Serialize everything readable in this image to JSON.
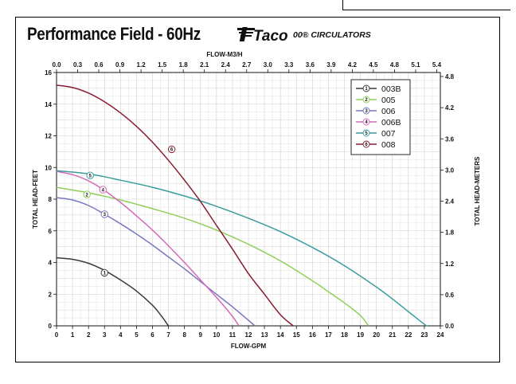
{
  "header": {
    "title": "Performance Field - 60Hz",
    "brand": "Taco",
    "subtitle": "00® CIRCULATORS"
  },
  "chart_data": {
    "type": "line",
    "title": "Performance Field - 60Hz",
    "xlabel": "FLOW-GPM",
    "ylabel": "TOTAL HEAD-FEET",
    "x2label": "FLOW-M3/H",
    "y2label": "TOTAL HEAD-METERS",
    "xlim": [
      0,
      24
    ],
    "ylim": [
      0,
      16
    ],
    "x_ticks": [
      0,
      1,
      2,
      3,
      4,
      5,
      6,
      7,
      8,
      9,
      10,
      11,
      12,
      13,
      14,
      15,
      16,
      17,
      18,
      19,
      20,
      21,
      22,
      23,
      24
    ],
    "y_ticks": [
      0,
      2,
      4,
      6,
      8,
      10,
      12,
      14,
      16
    ],
    "x2_ticks": [
      "0.0",
      "0.3",
      "0.6",
      "0.9",
      "1.2",
      "1.5",
      "1.8",
      "2.1",
      "2.4",
      "2.7",
      "3.0",
      "3.3",
      "3.6",
      "3.9",
      "4.2",
      "4.5",
      "4.8",
      "5.1",
      "5.4"
    ],
    "y2_ticks": [
      "0.0",
      "0.6",
      "1.2",
      "1.8",
      "2.4",
      "3.0",
      "3.6",
      "4.2",
      "4.8"
    ],
    "grid": true,
    "legend_position": "top-right",
    "series": [
      {
        "id": "1",
        "name": "003B",
        "color": "#3a3a3a",
        "x": [
          0,
          1,
          2,
          3,
          4,
          5,
          6,
          6.5,
          7
        ],
        "y": [
          4.3,
          4.2,
          3.95,
          3.5,
          2.9,
          2.2,
          1.3,
          0.7,
          0
        ]
      },
      {
        "id": "2",
        "name": "005",
        "color": "#8fcf5a",
        "x": [
          0,
          2,
          4,
          6,
          8,
          10,
          12,
          14,
          16,
          17,
          18,
          19,
          19.5
        ],
        "y": [
          8.75,
          8.4,
          7.95,
          7.4,
          6.8,
          6.05,
          5.15,
          4.1,
          2.85,
          2.15,
          1.45,
          0.65,
          0
        ]
      },
      {
        "id": "3",
        "name": "006",
        "color": "#7878c0",
        "x": [
          0,
          1,
          2,
          3,
          4,
          5,
          6,
          7,
          8,
          9,
          10,
          11,
          12,
          12.4
        ],
        "y": [
          8.1,
          7.95,
          7.6,
          7.05,
          6.45,
          5.8,
          5.1,
          4.35,
          3.6,
          2.8,
          2.0,
          1.2,
          0.35,
          0
        ]
      },
      {
        "id": "4",
        "name": "006B",
        "color": "#d46ab8",
        "x": [
          0,
          1,
          2,
          3,
          4,
          5,
          6,
          7,
          8,
          9,
          10,
          11,
          11.4
        ],
        "y": [
          9.75,
          9.55,
          9.15,
          8.55,
          7.8,
          6.95,
          6.05,
          5.05,
          4.0,
          2.9,
          1.8,
          0.6,
          0
        ]
      },
      {
        "id": "5",
        "name": "007",
        "color": "#3a9c9c",
        "x": [
          0,
          2,
          4,
          6,
          8,
          10,
          12,
          14,
          16,
          18,
          20,
          21,
          22,
          23,
          23.2
        ],
        "y": [
          9.8,
          9.6,
          9.2,
          8.75,
          8.2,
          7.55,
          6.8,
          5.95,
          4.95,
          3.8,
          2.45,
          1.7,
          0.9,
          0.1,
          0
        ]
      },
      {
        "id": "6",
        "name": "008",
        "color": "#8a1c30",
        "x": [
          0,
          1,
          2,
          3,
          4,
          5,
          6,
          7,
          8,
          9,
          10,
          11,
          12,
          13,
          14,
          14.8
        ],
        "y": [
          15.2,
          15.05,
          14.7,
          14.15,
          13.45,
          12.6,
          11.6,
          10.45,
          9.2,
          7.85,
          6.35,
          4.85,
          3.3,
          2.0,
          0.7,
          0
        ]
      }
    ],
    "callouts": [
      {
        "series": "1",
        "x": 3.0,
        "y": 3.35
      },
      {
        "series": "2",
        "x": 1.9,
        "y": 8.3
      },
      {
        "series": "3",
        "x": 3.0,
        "y": 7.05
      },
      {
        "series": "4",
        "x": 2.9,
        "y": 8.6
      },
      {
        "series": "5",
        "x": 2.1,
        "y": 9.5
      },
      {
        "series": "6",
        "x": 7.2,
        "y": 11.15
      }
    ]
  }
}
